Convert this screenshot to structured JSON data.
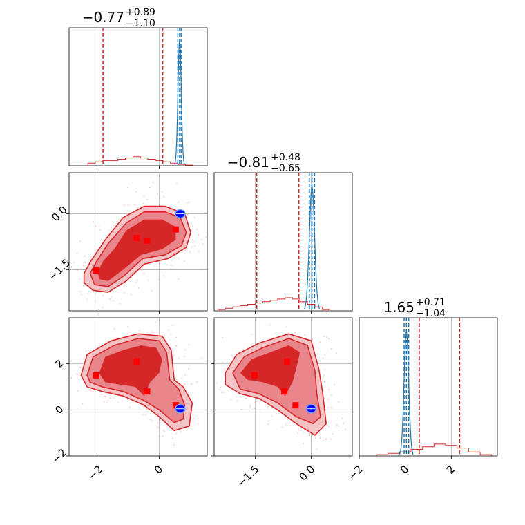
{
  "figure": {
    "primary_color": "#d62728",
    "secondary_color": "#1f77b4",
    "marker_color": "#ff0000",
    "truth_color": "#0000ff",
    "scatter_color": "#f5a5b0"
  },
  "chart_data": {
    "type": "corner",
    "parameters": [
      {
        "title_main": "−0.77",
        "title_sup": "+0.89",
        "title_sub": "−1.10",
        "range": [
          -3.0,
          1.6
        ],
        "ticks": [
          -2,
          0
        ],
        "tick_labels": [
          "−2",
          "0"
        ],
        "quantiles_primary": [
          -1.87,
          -0.77,
          0.12
        ],
        "quantiles_secondary": [
          0.62,
          0.68,
          0.73
        ]
      },
      {
        "title_main": "−0.81",
        "title_sup": "+0.48",
        "title_sub": "−0.65",
        "range": [
          -2.6,
          1.1
        ],
        "ticks": [
          -1.5,
          0.0
        ],
        "tick_labels": [
          "−1.5",
          "0.0"
        ],
        "quantiles_primary": [
          -1.46,
          -0.81,
          -0.33
        ],
        "quantiles_secondary": [
          -0.05,
          0.02,
          0.09
        ]
      },
      {
        "title_main": "1.65",
        "title_sup": "+0.71",
        "title_sub": "−1.04",
        "range": [
          -2.0,
          4.0
        ],
        "ticks": [
          -2,
          0,
          2
        ],
        "tick_labels": [
          "−2",
          "0",
          "2"
        ],
        "quantiles_primary": [
          0.61,
          1.65,
          2.36
        ],
        "quantiles_secondary": [
          -0.05,
          0.05,
          0.15
        ]
      }
    ],
    "hist_primary": [
      {
        "x": [
          -2.25,
          -2.0,
          -1.75,
          -1.5,
          -1.25,
          -1.0,
          -0.75,
          -0.5,
          -0.25,
          0.0,
          0.25,
          0.5,
          0.75,
          1.0
        ],
        "heights": [
          0.02,
          0.03,
          0.04,
          0.04,
          0.05,
          0.06,
          0.07,
          0.06,
          0.05,
          0.04,
          0.03,
          0.02,
          0.01,
          0.005
        ]
      },
      {
        "x": [
          -2.4,
          -2.2,
          -2.0,
          -1.8,
          -1.6,
          -1.4,
          -1.2,
          -1.0,
          -0.8,
          -0.6,
          -0.4,
          -0.2,
          0.0,
          0.2,
          0.4
        ],
        "heights": [
          0.01,
          0.02,
          0.03,
          0.04,
          0.05,
          0.06,
          0.07,
          0.08,
          0.09,
          0.1,
          0.09,
          0.07,
          0.05,
          0.03,
          0.01
        ]
      },
      {
        "x": [
          -1.0,
          -0.5,
          0.0,
          0.5,
          1.0,
          1.5,
          2.0,
          2.5,
          3.0,
          3.5
        ],
        "heights": [
          0.01,
          0.02,
          0.03,
          0.05,
          0.07,
          0.09,
          0.08,
          0.06,
          0.03,
          0.01
        ]
      }
    ],
    "marker_points": [
      {
        "p1": -2.1,
        "p2": -1.52,
        "p3": 1.5
      },
      {
        "p1": -0.75,
        "p2": -0.65,
        "p3": 2.1
      },
      {
        "p1": -0.4,
        "p2": -0.72,
        "p3": 0.8
      },
      {
        "p1": 0.55,
        "p2": -0.42,
        "p3": 0.2
      }
    ],
    "truth": {
      "p1": 0.7,
      "p2": 0.0,
      "p3": 0.05
    },
    "contours_1_2": [
      [
        [
          -2.5,
          -1.6
        ],
        [
          -2.3,
          -1.3
        ],
        [
          -1.8,
          -0.7
        ],
        [
          -1.2,
          -0.1
        ],
        [
          -0.5,
          0.2
        ],
        [
          0.2,
          0.2
        ],
        [
          0.85,
          0.0
        ],
        [
          1.05,
          -0.5
        ],
        [
          0.9,
          -0.9
        ],
        [
          0.3,
          -1.2
        ],
        [
          -0.5,
          -1.35
        ],
        [
          -1.1,
          -1.8
        ],
        [
          -1.7,
          -2.1
        ],
        [
          -2.2,
          -2.05
        ],
        [
          -2.5,
          -1.85
        ]
      ],
      [
        [
          -2.3,
          -1.6
        ],
        [
          -2.1,
          -1.3
        ],
        [
          -1.7,
          -0.8
        ],
        [
          -1.1,
          -0.25
        ],
        [
          -0.5,
          0.05
        ],
        [
          0.2,
          0.05
        ],
        [
          0.7,
          -0.1
        ],
        [
          0.9,
          -0.5
        ],
        [
          0.75,
          -0.85
        ],
        [
          0.2,
          -1.1
        ],
        [
          -0.55,
          -1.2
        ],
        [
          -1.15,
          -1.65
        ],
        [
          -1.7,
          -1.95
        ],
        [
          -2.15,
          -1.9
        ]
      ],
      [
        [
          -2.05,
          -1.55
        ],
        [
          -1.85,
          -1.25
        ],
        [
          -1.5,
          -0.95
        ],
        [
          -1.1,
          -0.45
        ],
        [
          -0.5,
          -0.15
        ],
        [
          0.1,
          -0.15
        ],
        [
          0.55,
          -0.35
        ],
        [
          0.55,
          -0.7
        ],
        [
          0.1,
          -0.95
        ],
        [
          -0.6,
          -1.1
        ],
        [
          -1.2,
          -1.5
        ],
        [
          -1.7,
          -1.8
        ],
        [
          -2.0,
          -1.75
        ]
      ]
    ],
    "contours_1_3": [
      [
        [
          -2.6,
          1.5
        ],
        [
          -2.4,
          2.4
        ],
        [
          -1.6,
          3.0
        ],
        [
          -0.7,
          3.3
        ],
        [
          0.1,
          3.2
        ],
        [
          0.4,
          2.6
        ],
        [
          0.5,
          1.3
        ],
        [
          0.8,
          1.0
        ],
        [
          1.1,
          0.3
        ],
        [
          1.0,
          -0.7
        ],
        [
          0.5,
          -0.9
        ],
        [
          0.0,
          -0.3
        ],
        [
          -0.5,
          0.2
        ],
        [
          -1.2,
          0.6
        ],
        [
          -1.9,
          0.8
        ],
        [
          -2.4,
          1.0
        ]
      ],
      [
        [
          -2.4,
          1.5
        ],
        [
          -2.2,
          2.3
        ],
        [
          -1.5,
          2.8
        ],
        [
          -0.7,
          3.1
        ],
        [
          0.0,
          3.0
        ],
        [
          0.25,
          2.5
        ],
        [
          0.35,
          1.3
        ],
        [
          0.65,
          0.9
        ],
        [
          0.85,
          0.2
        ],
        [
          0.8,
          -0.4
        ],
        [
          0.5,
          -0.55
        ],
        [
          0.0,
          0.0
        ],
        [
          -0.5,
          0.4
        ],
        [
          -1.2,
          0.8
        ],
        [
          -1.9,
          1.0
        ],
        [
          -2.3,
          1.2
        ]
      ],
      [
        [
          -2.0,
          1.6
        ],
        [
          -1.8,
          2.3
        ],
        [
          -1.2,
          2.6
        ],
        [
          -0.6,
          2.8
        ],
        [
          -0.1,
          2.7
        ],
        [
          0.1,
          2.2
        ],
        [
          0.0,
          1.6
        ],
        [
          -0.3,
          1.2
        ],
        [
          -0.5,
          0.6
        ],
        [
          -0.8,
          1.0
        ],
        [
          -1.3,
          1.1
        ],
        [
          -1.8,
          1.2
        ]
      ]
    ],
    "contours_2_3": [
      [
        [
          -2.3,
          1.6
        ],
        [
          -2.0,
          2.4
        ],
        [
          -1.4,
          2.9
        ],
        [
          -0.6,
          3.3
        ],
        [
          0.0,
          3.0
        ],
        [
          0.2,
          1.8
        ],
        [
          0.3,
          0.8
        ],
        [
          0.4,
          -0.6
        ],
        [
          0.1,
          -1.1
        ],
        [
          -0.4,
          -0.6
        ],
        [
          -0.9,
          0.0
        ],
        [
          -1.4,
          0.5
        ],
        [
          -1.9,
          0.7
        ],
        [
          -2.3,
          1.1
        ]
      ],
      [
        [
          -2.1,
          1.6
        ],
        [
          -1.8,
          2.3
        ],
        [
          -1.3,
          2.7
        ],
        [
          -0.6,
          3.1
        ],
        [
          -0.1,
          2.8
        ],
        [
          0.1,
          1.7
        ],
        [
          0.15,
          0.7
        ],
        [
          0.25,
          -0.3
        ],
        [
          0.05,
          -0.6
        ],
        [
          -0.4,
          -0.3
        ],
        [
          -0.9,
          0.3
        ],
        [
          -1.4,
          0.7
        ],
        [
          -1.9,
          0.9
        ]
      ],
      [
        [
          -1.9,
          1.6
        ],
        [
          -1.6,
          2.2
        ],
        [
          -1.1,
          2.5
        ],
        [
          -0.6,
          2.8
        ],
        [
          -0.3,
          2.5
        ],
        [
          -0.4,
          1.8
        ],
        [
          -0.5,
          1.2
        ],
        [
          -0.7,
          0.6
        ],
        [
          -0.9,
          1.0
        ],
        [
          -1.3,
          1.2
        ],
        [
          -1.7,
          1.3
        ]
      ]
    ]
  }
}
